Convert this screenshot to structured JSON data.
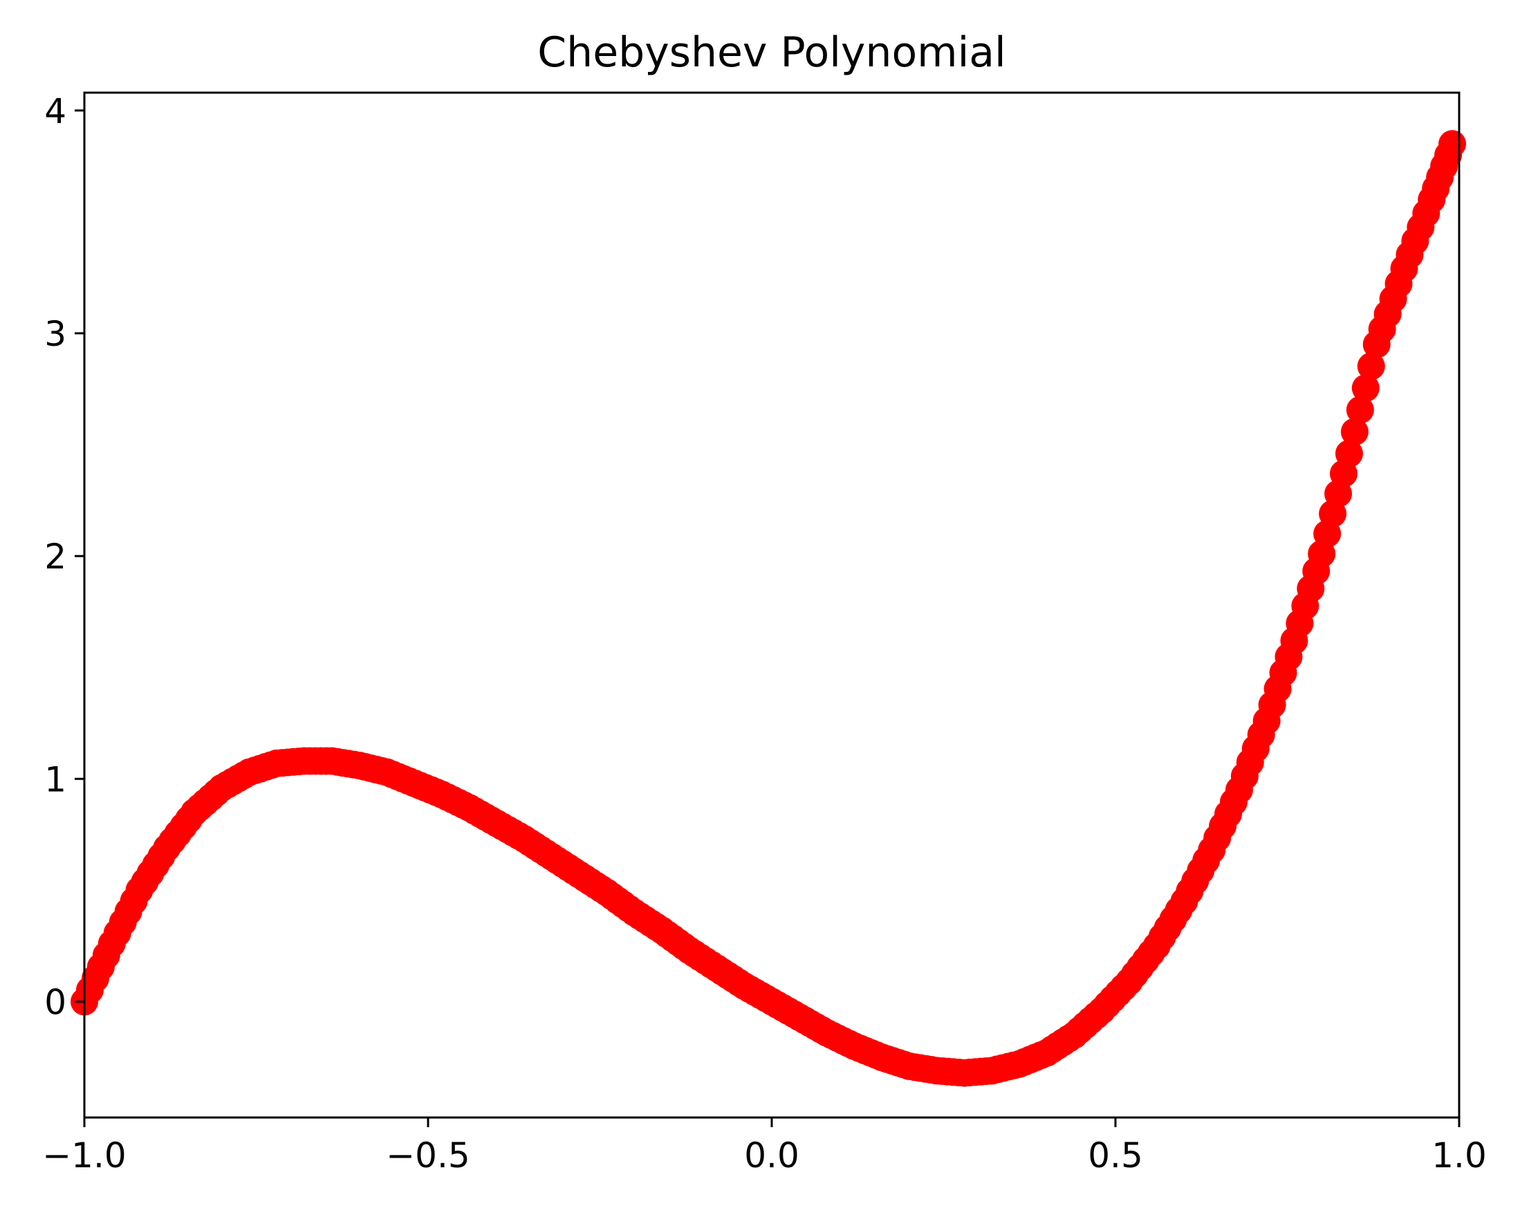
{
  "chart_data": {
    "type": "scatter",
    "title": "Chebyshev Polynomial",
    "xlabel": "",
    "ylabel": "",
    "xlim": [
      -1.0,
      1.0
    ],
    "ylim": [
      -0.52,
      4.08
    ],
    "x_ticks": [
      -1.0,
      -0.5,
      0.0,
      0.5,
      1.0
    ],
    "x_tick_labels": [
      "−1.0",
      "−0.5",
      "0.0",
      "0.5",
      "1.0"
    ],
    "y_ticks": [
      0,
      1,
      2,
      3,
      4
    ],
    "y_tick_labels": [
      "0",
      "1",
      "2",
      "3",
      "4"
    ],
    "grid": false,
    "legend": "none",
    "marker_color": "#ff0000",
    "series": [
      {
        "x": [
          -1.0,
          -0.96,
          -0.92,
          -0.88,
          -0.84,
          -0.8,
          -0.76,
          -0.72,
          -0.68,
          -0.64,
          -0.6,
          -0.56,
          -0.52,
          -0.48,
          -0.44,
          -0.4,
          -0.36,
          -0.32,
          -0.28,
          -0.24,
          -0.2,
          -0.16,
          -0.12,
          -0.08,
          -0.04,
          0.0,
          0.04,
          0.08,
          0.12,
          0.16,
          0.2,
          0.24,
          0.28,
          0.32,
          0.36,
          0.4,
          0.44,
          0.48,
          0.52,
          0.56,
          0.6,
          0.64,
          0.68,
          0.72,
          0.76,
          0.8,
          0.84,
          0.88,
          0.92,
          0.96,
          0.99
        ],
        "y": [
          0.0,
          0.26,
          0.5,
          0.69,
          0.85,
          0.96,
          1.03,
          1.07,
          1.08,
          1.08,
          1.06,
          1.03,
          0.98,
          0.93,
          0.87,
          0.8,
          0.73,
          0.65,
          0.57,
          0.49,
          0.4,
          0.32,
          0.23,
          0.15,
          0.07,
          0.0,
          -0.07,
          -0.14,
          -0.2,
          -0.25,
          -0.29,
          -0.31,
          -0.32,
          -0.31,
          -0.28,
          -0.23,
          -0.15,
          -0.04,
          0.09,
          0.25,
          0.45,
          0.68,
          0.95,
          1.26,
          1.62,
          2.01,
          2.46,
          2.95,
          3.29,
          3.6,
          3.85
        ]
      }
    ]
  }
}
